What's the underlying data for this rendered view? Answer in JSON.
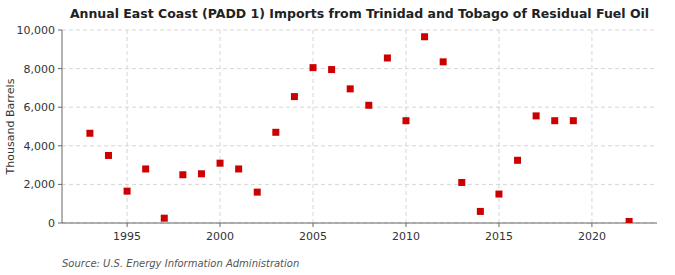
{
  "chart_data": {
    "type": "scatter",
    "title": "Annual East Coast (PADD 1) Imports from Trinidad and Tobago of Residual Fuel Oil",
    "ylabel": "Thousand Barrels",
    "annotations": [
      "Source: U.S. Energy Information Administration"
    ],
    "x": [
      1993,
      1994,
      1995,
      1996,
      1997,
      1998,
      1999,
      2000,
      2001,
      2002,
      2003,
      2004,
      2005,
      2006,
      2007,
      2008,
      2009,
      2010,
      2011,
      2012,
      2013,
      2014,
      2015,
      2016,
      2017,
      2018,
      2019,
      2022
    ],
    "values": [
      4650,
      3500,
      1650,
      2800,
      250,
      2500,
      2550,
      3100,
      2800,
      1600,
      4700,
      6550,
      8050,
      7950,
      6950,
      6100,
      8550,
      5300,
      9650,
      8350,
      2100,
      600,
      1500,
      3250,
      5550,
      5300,
      5300,
      80
    ],
    "color": "#cc0000",
    "marker": "square",
    "xlim": [
      1991.5,
      2023.5
    ],
    "xticks": [
      1995,
      2000,
      2005,
      2010,
      2015,
      2020
    ],
    "ylim": [
      0,
      10000
    ],
    "yticks": [
      0,
      {
        "value": 2000,
        "label": "2,000"
      },
      {
        "value": 4000,
        "label": "4,000"
      },
      {
        "value": 6000,
        "label": "6,000"
      },
      {
        "value": 8000,
        "label": "8,000"
      },
      {
        "value": 10000,
        "label": "10,000"
      }
    ],
    "grid": true
  }
}
